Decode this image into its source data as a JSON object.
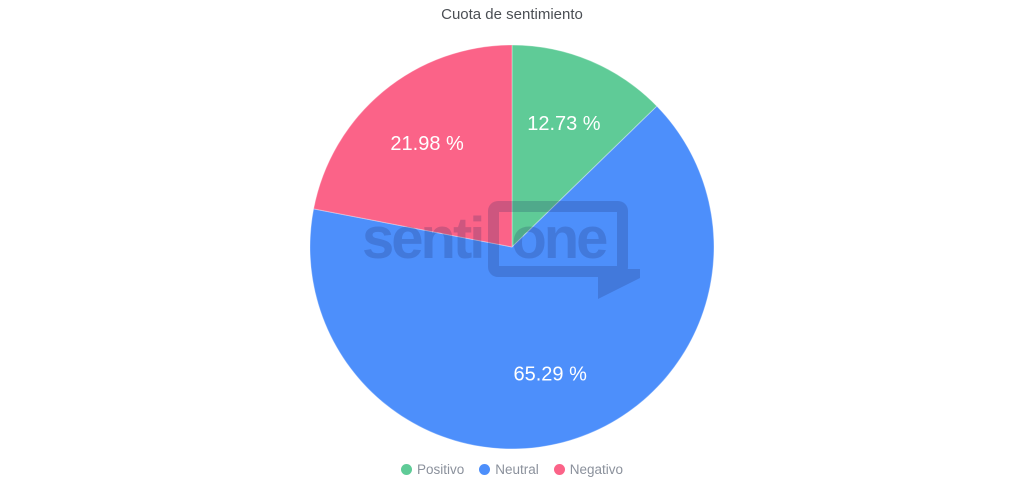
{
  "chart_data": {
    "type": "pie",
    "title": "Cuota de sentimiento",
    "categories": [
      "Positivo",
      "Neutral",
      "Negativo"
    ],
    "values": [
      12.73,
      65.29,
      21.98
    ],
    "labels": [
      "12.73 %",
      "65.29 %",
      "21.98 %"
    ],
    "colors": [
      "#5FCB97",
      "#4D8FFB",
      "#FB6388"
    ],
    "start_angle_deg": 0,
    "direction": "clockwise",
    "legend_position": "bottom",
    "slice_label_color": "#FFFFFF",
    "title_color": "#4B4F54",
    "legend_text_color": "#8B919C",
    "background": "#FFFFFF"
  },
  "watermark": {
    "text_left": "senti",
    "text_bubble": "one"
  }
}
